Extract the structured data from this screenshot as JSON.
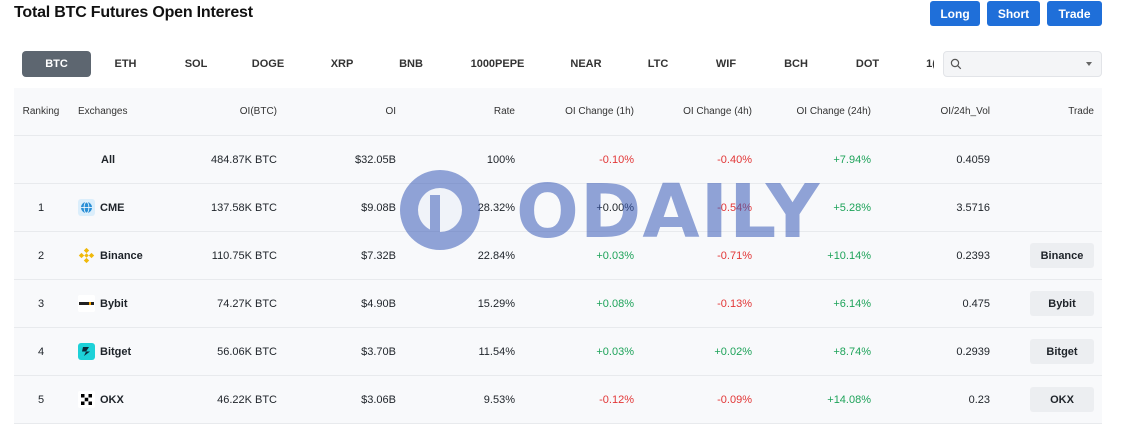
{
  "header": {
    "title": "Total BTC Futures Open Interest",
    "buttons": {
      "long": "Long",
      "short": "Short",
      "trade": "Trade"
    }
  },
  "tabs": [
    "BTC",
    "ETH",
    "SOL",
    "DOGE",
    "XRP",
    "BNB",
    "1000PEPE",
    "NEAR",
    "LTC",
    "WIF",
    "BCH",
    "DOT",
    "1("
  ],
  "active_tab": "BTC",
  "search": {
    "value": "",
    "placeholder": ""
  },
  "table": {
    "columns": [
      "Ranking",
      "Exchanges",
      "OI(BTC)",
      "OI",
      "Rate",
      "OI Change (1h)",
      "OI Change (4h)",
      "OI Change (24h)",
      "OI/24h_Vol",
      "Trade"
    ],
    "rows": [
      {
        "rank": "",
        "exchange": "All",
        "icon": "",
        "oi_btc": "484.87K BTC",
        "oi": "$32.05B",
        "rate": "100%",
        "ch1h": "-0.10%",
        "ch4h": "-0.40%",
        "ch24h": "+7.94%",
        "vol": "0.4059",
        "trade": ""
      },
      {
        "rank": "1",
        "exchange": "CME",
        "icon": "globe-icon",
        "oi_btc": "137.58K BTC",
        "oi": "$9.08B",
        "rate": "28.32%",
        "ch1h": "+0.00%",
        "ch4h": "-0.54%",
        "ch24h": "+5.28%",
        "vol": "3.5716",
        "trade": ""
      },
      {
        "rank": "2",
        "exchange": "Binance",
        "icon": "binance-icon",
        "oi_btc": "110.75K BTC",
        "oi": "$7.32B",
        "rate": "22.84%",
        "ch1h": "+0.03%",
        "ch4h": "-0.71%",
        "ch24h": "+10.14%",
        "vol": "0.2393",
        "trade": "Binance"
      },
      {
        "rank": "3",
        "exchange": "Bybit",
        "icon": "bybit-icon",
        "oi_btc": "74.27K BTC",
        "oi": "$4.90B",
        "rate": "15.29%",
        "ch1h": "+0.08%",
        "ch4h": "-0.13%",
        "ch24h": "+6.14%",
        "vol": "0.475",
        "trade": "Bybit"
      },
      {
        "rank": "4",
        "exchange": "Bitget",
        "icon": "bitget-icon",
        "oi_btc": "56.06K BTC",
        "oi": "$3.70B",
        "rate": "11.54%",
        "ch1h": "+0.03%",
        "ch4h": "+0.02%",
        "ch24h": "+8.74%",
        "vol": "0.2939",
        "trade": "Bitget"
      },
      {
        "rank": "5",
        "exchange": "OKX",
        "icon": "okx-icon",
        "oi_btc": "46.22K BTC",
        "oi": "$3.06B",
        "rate": "9.53%",
        "ch1h": "-0.12%",
        "ch4h": "-0.09%",
        "ch24h": "+14.08%",
        "vol": "0.23",
        "trade": "OKX"
      }
    ]
  },
  "watermark": {
    "text": "ODAILY"
  },
  "colors": {
    "accent": "#1f6fd9",
    "positive": "#1ea35a",
    "negative": "#e23636",
    "active_tab": "#5d6670"
  }
}
